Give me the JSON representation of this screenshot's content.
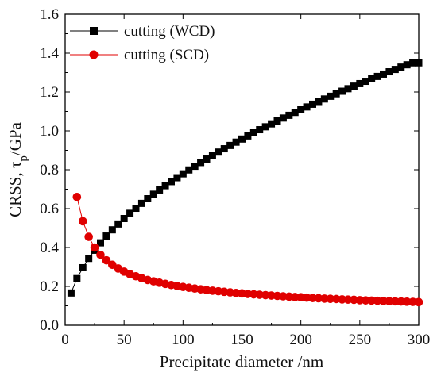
{
  "chart_data": {
    "type": "scatter",
    "title": "",
    "xlabel": "Precipitate diameter /nm",
    "ylabel_main": "CRSS, τ",
    "ylabel_sub": "p",
    "ylabel_unit": "/GPa",
    "xlim": [
      0,
      300
    ],
    "ylim": [
      0,
      1.6
    ],
    "x_ticks": [
      "0",
      "50",
      "100",
      "150",
      "200",
      "250",
      "300"
    ],
    "y_ticks": [
      "0.0",
      "0.2",
      "0.4",
      "0.6",
      "0.8",
      "1.0",
      "1.2",
      "1.4",
      "1.6"
    ],
    "grid": false,
    "legend_position": "top-left",
    "x": [
      5,
      10,
      15,
      20,
      25,
      30,
      35,
      40,
      45,
      50,
      55,
      60,
      65,
      70,
      75,
      80,
      85,
      90,
      95,
      100,
      105,
      110,
      115,
      120,
      125,
      130,
      135,
      140,
      145,
      150,
      155,
      160,
      165,
      170,
      175,
      180,
      185,
      190,
      195,
      200,
      205,
      210,
      215,
      220,
      225,
      230,
      235,
      240,
      245,
      250,
      255,
      260,
      265,
      270,
      275,
      280,
      285,
      290,
      295,
      300
    ],
    "series": [
      {
        "name": "cutting (WCD)",
        "color": "#000000",
        "marker": "square",
        "values": [
          0.166,
          0.24,
          0.296,
          0.344,
          0.386,
          0.424,
          0.459,
          0.491,
          0.521,
          0.549,
          0.576,
          0.602,
          0.627,
          0.651,
          0.674,
          0.696,
          0.718,
          0.739,
          0.759,
          0.779,
          0.799,
          0.818,
          0.837,
          0.855,
          0.873,
          0.891,
          0.908,
          0.925,
          0.942,
          0.958,
          0.974,
          0.99,
          1.006,
          1.021,
          1.036,
          1.051,
          1.066,
          1.08,
          1.095,
          1.109,
          1.123,
          1.137,
          1.151,
          1.164,
          1.178,
          1.191,
          1.204,
          1.217,
          1.23,
          1.243,
          1.255,
          1.268,
          1.28,
          1.292,
          1.304,
          1.316,
          1.328,
          1.34,
          1.35,
          1.35
        ]
      },
      {
        "name": "cutting (SCD)",
        "color": "#e00000",
        "marker": "circle",
        "values": [
          null,
          0.66,
          0.535,
          0.455,
          0.4,
          0.362,
          0.334,
          0.311,
          0.292,
          0.276,
          0.263,
          0.252,
          0.242,
          0.233,
          0.226,
          0.219,
          0.213,
          0.207,
          0.202,
          0.197,
          0.193,
          0.189,
          0.185,
          0.181,
          0.178,
          0.175,
          0.172,
          0.169,
          0.166,
          0.164,
          0.161,
          0.159,
          0.157,
          0.155,
          0.153,
          0.151,
          0.149,
          0.147,
          0.145,
          0.144,
          0.142,
          0.14,
          0.139,
          0.137,
          0.136,
          0.135,
          0.133,
          0.132,
          0.131,
          0.129,
          0.128,
          0.127,
          0.126,
          0.125,
          0.124,
          0.123,
          0.122,
          0.121,
          0.12,
          0.119
        ]
      }
    ]
  }
}
